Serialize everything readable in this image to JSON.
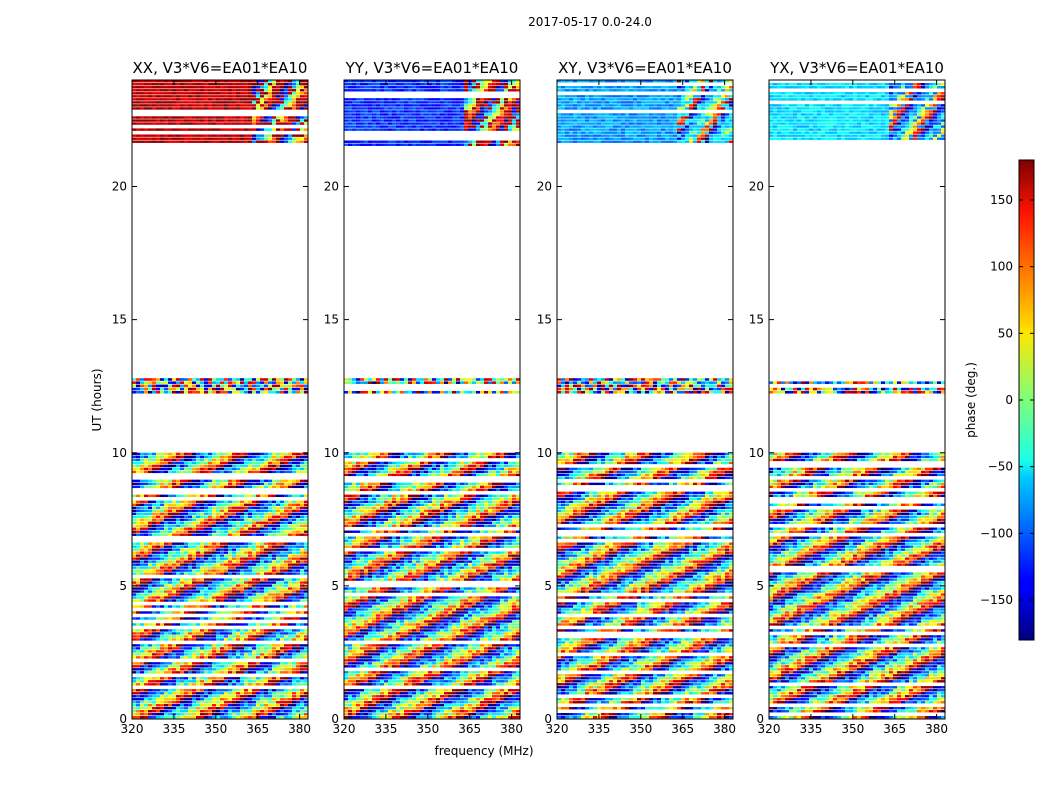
{
  "chart_data": {
    "type": "heatmap",
    "suptitle": "2017-05-17 0.0-24.0",
    "xlabel": "frequency (MHz)",
    "ylabel": "UT (hours)",
    "xlim": [
      320,
      383
    ],
    "ylim": [
      0,
      24
    ],
    "xticks": [
      320,
      335,
      350,
      365,
      380
    ],
    "yticks": [
      0,
      5,
      10,
      15,
      20
    ],
    "panels": [
      {
        "title": "XX, V3*V6=EA01*EA10",
        "mean_phase": 160,
        "mean_phase_high_freq": 170
      },
      {
        "title": "YY, V3*V6=EA01*EA10",
        "mean_phase": -120,
        "mean_phase_high_freq": 165
      },
      {
        "title": "XY, V3*V6=EA01*EA10",
        "mean_phase": -80,
        "mean_phase_high_freq": -60
      },
      {
        "title": "YX, V3*V6=EA01*EA10",
        "mean_phase": -55,
        "mean_phase_high_freq": -90
      }
    ],
    "data_coverage_hours": [
      [
        0,
        10
      ],
      [
        12.2,
        12.8
      ],
      [
        21.5,
        24
      ]
    ],
    "colorbar": {
      "label": "phase (deg.)",
      "range": [
        -180,
        180
      ],
      "ticks": [
        -150,
        -100,
        -50,
        0,
        50,
        100,
        150
      ],
      "colormap": "jet"
    }
  }
}
